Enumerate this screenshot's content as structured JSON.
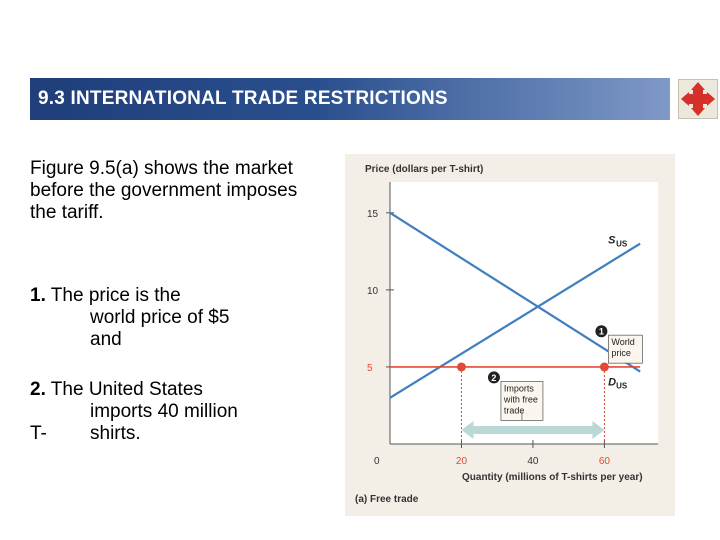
{
  "slide": {
    "title": "9.3 INTERNATIONAL TRADE RESTRICTIONS",
    "intro": "Figure 9.5(a) shows the market before the government imposes the tariff.",
    "list": [
      {
        "number": "1.",
        "lines": [
          "The price is the",
          "world price of $5",
          "and"
        ]
      },
      {
        "number": "2.",
        "lines": [
          "The United States",
          "imports 40 million",
          "T-",
          "shirts."
        ]
      }
    ]
  },
  "chart_data": {
    "type": "line",
    "ylabel": "Price (dollars per T-shirt)",
    "xlabel": "Quantity (millions of T-shirts per year)",
    "caption": "(a) Free trade",
    "origin_label": "0",
    "xlim": [
      0,
      75
    ],
    "ylim": [
      0,
      17
    ],
    "x_ticks": [
      20,
      40,
      60
    ],
    "y_ticks": [
      5,
      10,
      15
    ],
    "x_tick_labels": [
      "20",
      "40",
      "60"
    ],
    "y_tick_labels": [
      "5",
      "10",
      "15"
    ],
    "series": [
      {
        "name": "SUS",
        "label_main": "S",
        "label_sub": "US",
        "color": "#3f7fc1",
        "points": [
          [
            0,
            3
          ],
          [
            70,
            13
          ]
        ]
      },
      {
        "name": "DUS",
        "label_main": "D",
        "label_sub": "US",
        "color": "#3f7fc1",
        "points": [
          [
            0,
            15
          ],
          [
            70,
            4.7
          ]
        ]
      },
      {
        "name": "World price",
        "color": "#e04a36",
        "points": [
          [
            0,
            5
          ],
          [
            70,
            5
          ]
        ]
      }
    ],
    "points": [
      {
        "x": 20,
        "y": 5,
        "color": "#e04a36"
      },
      {
        "x": 60,
        "y": 5,
        "color": "#e04a36"
      }
    ],
    "imports_range": [
      20,
      60
    ],
    "annotations": [
      {
        "marker": "1",
        "lines": [
          "World",
          "price"
        ],
        "x": 60,
        "y": 6.8,
        "leader_y": 5.3
      },
      {
        "marker": "2",
        "lines": [
          "Imports",
          "with free",
          "trade"
        ],
        "x": 40,
        "y": 3.8,
        "leader_y": 2.1
      }
    ],
    "colors": {
      "axis": "#555555",
      "curve": "#3f7fc1",
      "world_price": "#e04a36",
      "arrow": "#b9d8d6",
      "bg": "#f3efe6"
    }
  }
}
